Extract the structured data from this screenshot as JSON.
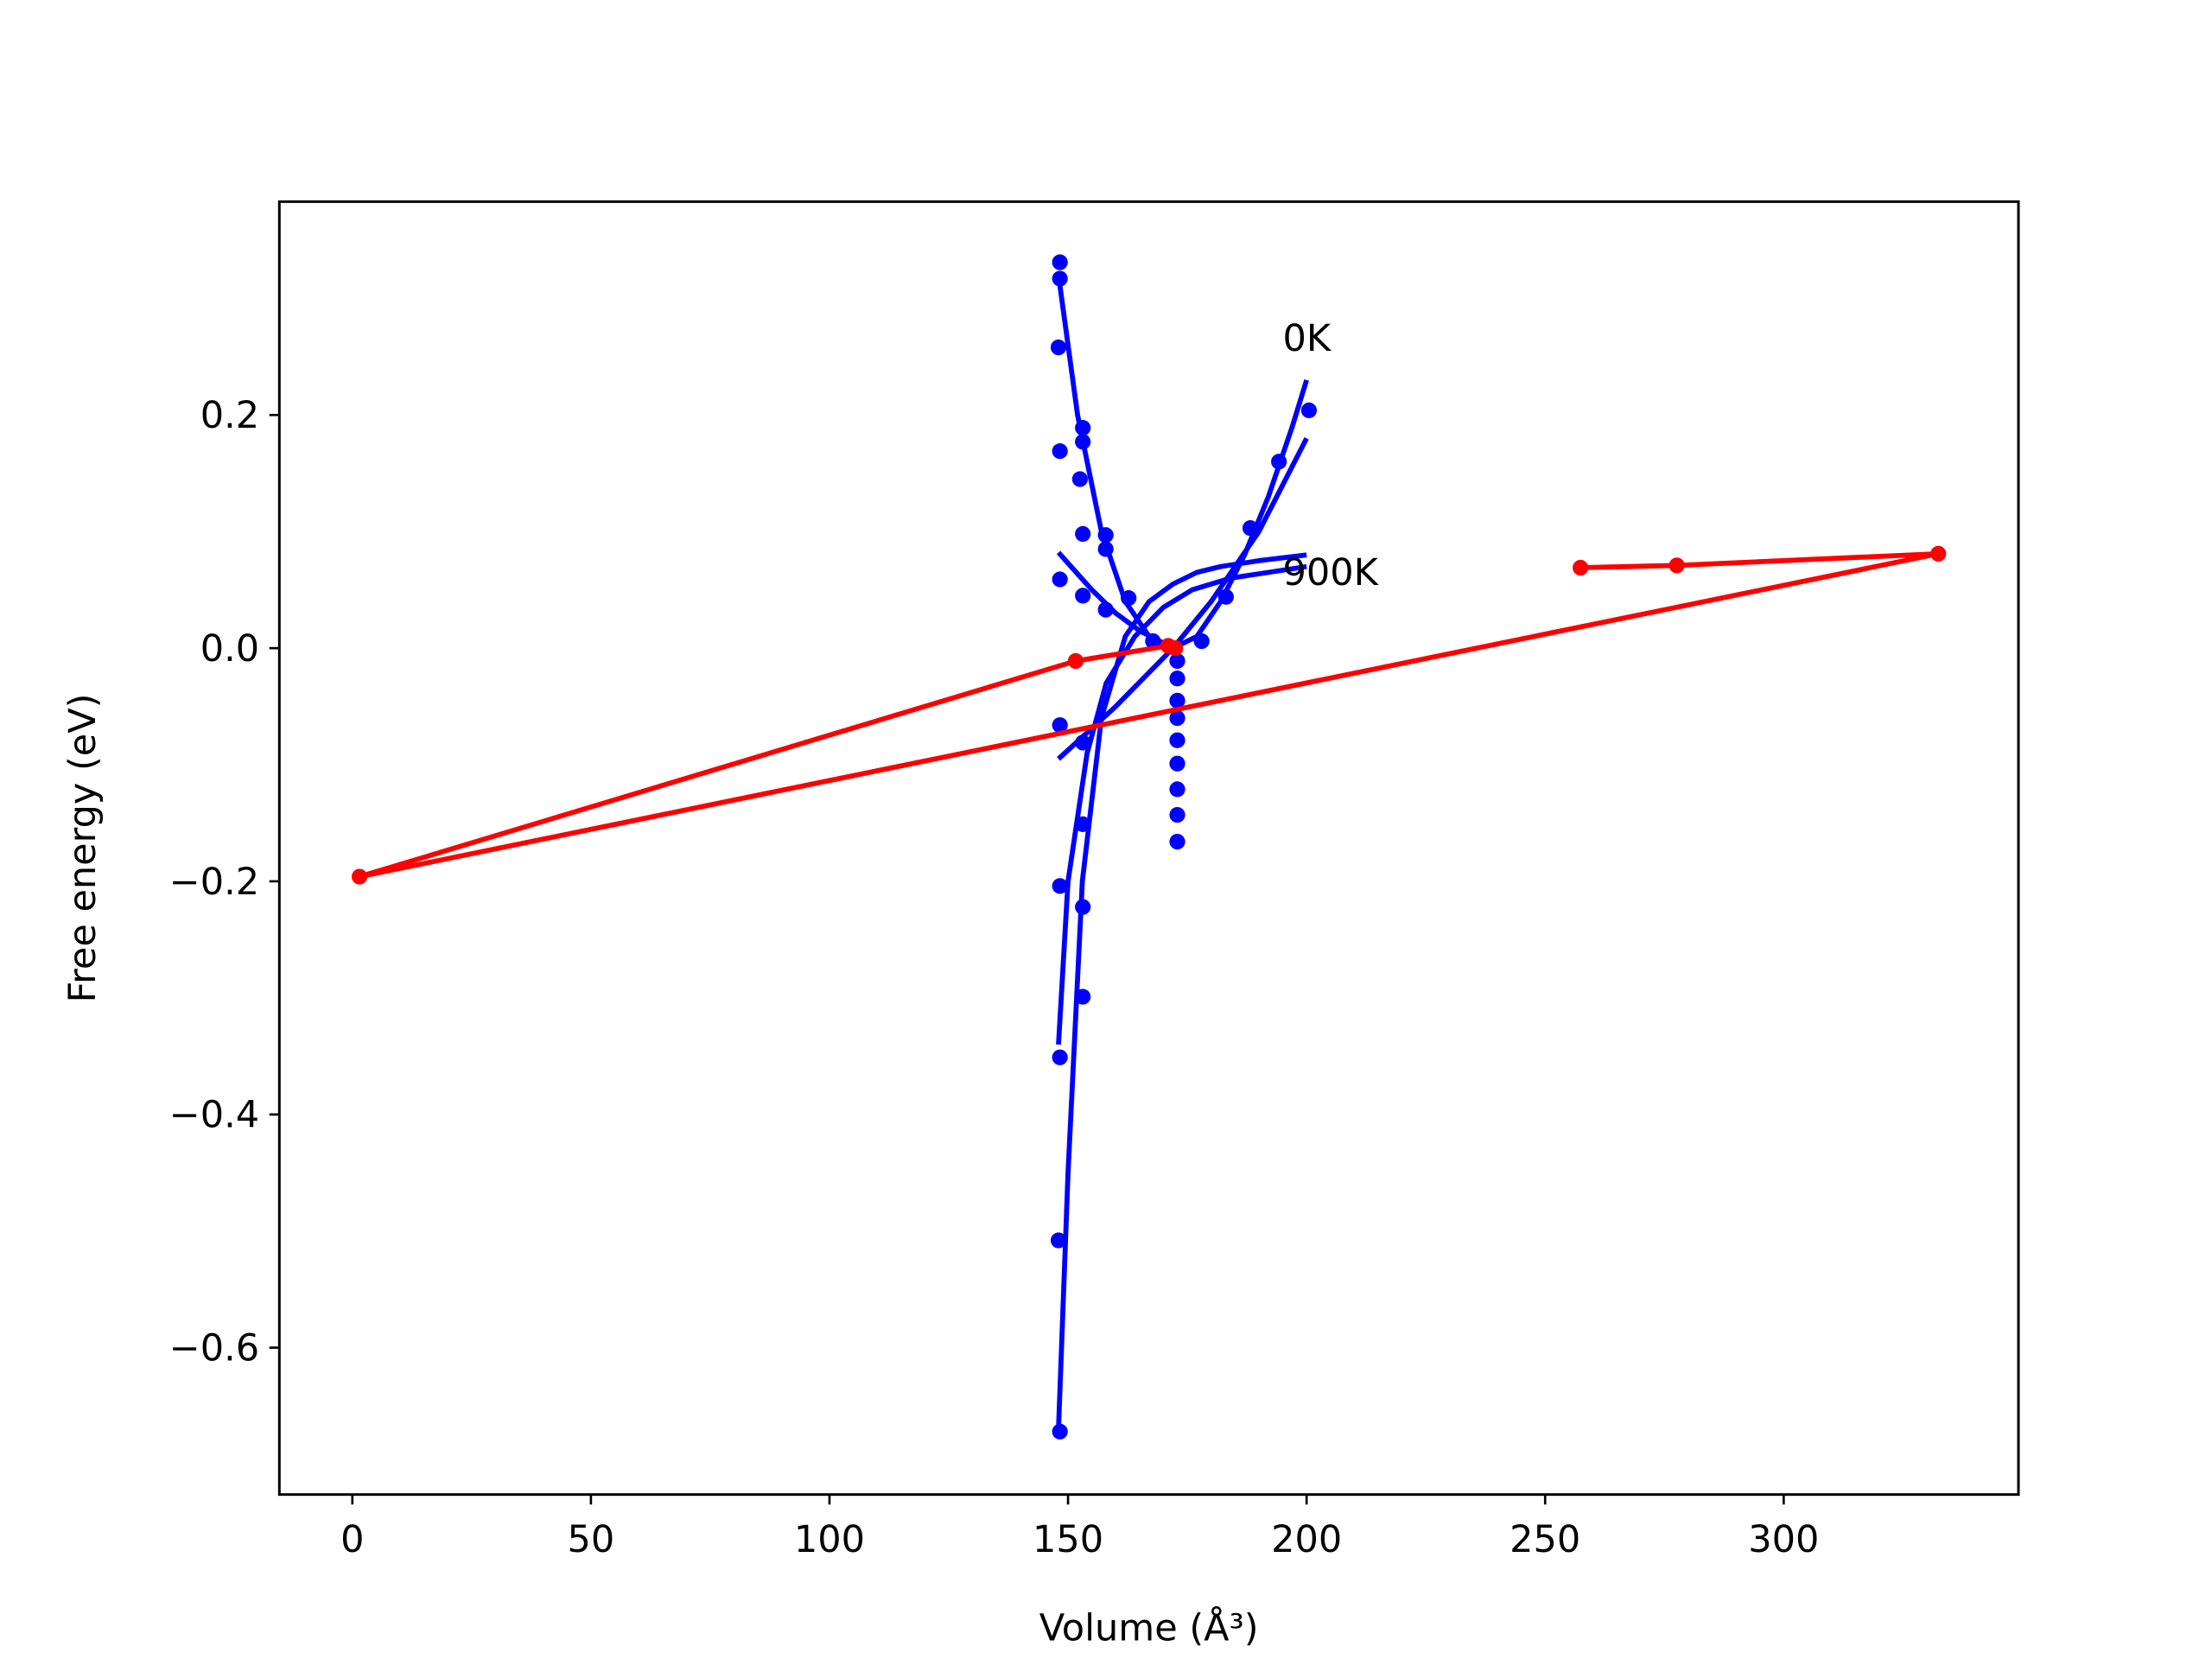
{
  "chart_data": {
    "type": "line",
    "xlabel": "Volume (Å³)",
    "ylabel": "Free energy (eV)",
    "xlim": [
      -15.3,
      349.2
    ],
    "ylim": [
      -0.726,
      0.383
    ],
    "xticks": [
      0,
      50,
      100,
      150,
      200,
      250,
      300
    ],
    "yticks": [
      {
        "value": -0.6,
        "label": "−0.6"
      },
      {
        "value": -0.4,
        "label": "−0.4"
      },
      {
        "value": -0.2,
        "label": "−0.2"
      },
      {
        "value": 0.0,
        "label": "0.0"
      },
      0.2
    ],
    "annotations": [
      {
        "text": "0K",
        "x": 195,
        "y": 0.265
      },
      {
        "text": "900K",
        "x": 195,
        "y": 0.064
      }
    ],
    "series": [
      {
        "color": "#0000ff",
        "marker": true,
        "line": false,
        "x": [
          148.3,
          148.3,
          148.0,
          148.3,
          148.3,
          148.3,
          148.3,
          148.3,
          148.0,
          148.3,
          153.1,
          153.1,
          152.5,
          153.1,
          153.1,
          157.9,
          157.9,
          157.9,
          153.1,
          153.1,
          153.1,
          153.1,
          162.7,
          167.8,
          172.9,
          172.9,
          172.9,
          172.9,
          172.9,
          172.9,
          172.9,
          172.9,
          172.9,
          178.0,
          183.1,
          188.2,
          194.2,
          200.5
        ],
        "values": [
          0.331,
          0.317,
          0.258,
          0.169,
          0.059,
          -0.066,
          -0.204,
          -0.351,
          -0.508,
          -0.672,
          0.189,
          0.177,
          0.145,
          0.098,
          0.045,
          0.097,
          0.085,
          0.033,
          -0.081,
          -0.151,
          -0.222,
          -0.299,
          0.043,
          0.006,
          -0.011,
          -0.026,
          -0.045,
          -0.06,
          -0.079,
          -0.099,
          -0.121,
          -0.143,
          -0.166,
          0.006,
          0.044,
          0.103,
          0.16,
          0.204
        ]
      },
      {
        "color": "#0000ff",
        "marker": false,
        "line": true,
        "x": [
          148,
          152,
          157,
          162,
          167,
          172,
          177,
          182,
          187,
          192,
          197,
          200
        ],
        "values": [
          0.32,
          0.2,
          0.1,
          0.04,
          0.01,
          0.0,
          0.01,
          0.04,
          0.08,
          0.13,
          0.19,
          0.23
        ]
      },
      {
        "color": "#0000ff",
        "marker": false,
        "line": true,
        "x": [
          148,
          150,
          153,
          157,
          162,
          167,
          172,
          177,
          182,
          190,
          200
        ],
        "values": [
          -0.67,
          -0.45,
          -0.2,
          -0.06,
          0.01,
          0.04,
          0.055,
          0.065,
          0.07,
          0.075,
          0.08
        ]
      },
      {
        "color": "#0000ff",
        "marker": false,
        "line": true,
        "x": [
          148,
          150,
          154,
          158,
          164,
          170,
          176,
          184,
          192,
          200
        ],
        "values": [
          -0.34,
          -0.2,
          -0.09,
          -0.03,
          0.01,
          0.035,
          0.05,
          0.06,
          0.065,
          0.07
        ]
      },
      {
        "color": "#0000ff",
        "marker": false,
        "line": true,
        "x": [
          148,
          155,
          160,
          165,
          172
        ],
        "values": [
          0.082,
          0.05,
          0.03,
          0.015,
          0.0
        ]
      },
      {
        "color": "#0000ff",
        "marker": false,
        "line": true,
        "x": [
          148,
          160,
          172,
          180,
          190,
          200
        ],
        "values": [
          -0.095,
          -0.05,
          0.0,
          0.04,
          0.1,
          0.18
        ]
      },
      {
        "color": "#ff0000",
        "marker": true,
        "line": true,
        "x": [
          257.4,
          277.6,
          332.4,
          1.5,
          151.6,
          171.0,
          172.5
        ],
        "values": [
          0.069,
          0.071,
          0.081,
          -0.196,
          -0.011,
          0.002,
          0.0
        ]
      }
    ]
  }
}
